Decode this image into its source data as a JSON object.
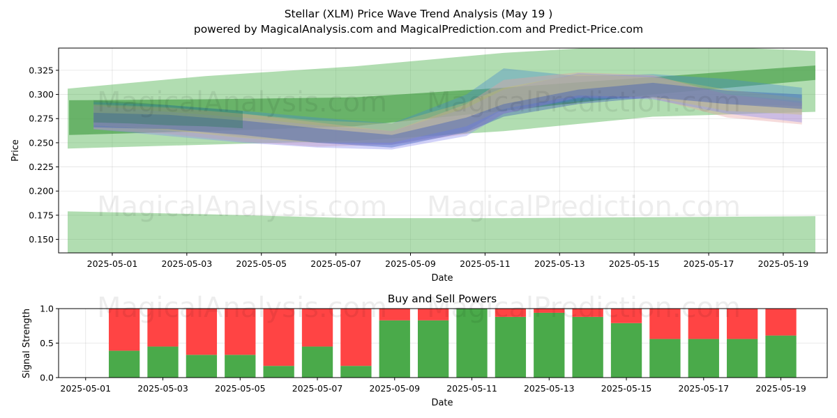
{
  "title_line1": "Stellar (XLM) Price Wave Trend Analysis (May 19 )",
  "title_line2": "powered by MagicalAnalysis.com and MagicalPrediction.com and Predict-Price.com",
  "watermarks": [
    "MagicalAnalysis.com",
    "MagicalPrediction.com"
  ],
  "colors": {
    "buy": "#4aaa4a",
    "sell": "#ff4444",
    "band_green": "#5cb85c",
    "band_blue": "#4466cc"
  },
  "chart_data": [
    {
      "type": "area",
      "title": "",
      "xlabel": "Date",
      "ylabel": "Price",
      "xlim": [
        "2025-04-29",
        "2025-05-20"
      ],
      "ylim": [
        0.136,
        0.348
      ],
      "grid": true,
      "xticks": [
        "2025-05-01",
        "2025-05-03",
        "2025-05-05",
        "2025-05-07",
        "2025-05-09",
        "2025-05-11",
        "2025-05-13",
        "2025-05-15",
        "2025-05-17",
        "2025-05-19"
      ],
      "yticks": [
        "0.150",
        "0.175",
        "0.200",
        "0.225",
        "0.250",
        "0.275",
        "0.300",
        "0.325"
      ],
      "series": [
        {
          "kind": "wide_green_upper",
          "x": [
            "2025-04-29",
            "2025-05-03",
            "2025-05-07",
            "2025-05-11",
            "2025-05-15",
            "2025-05-19"
          ],
          "upper": [
            0.306,
            0.319,
            0.329,
            0.343,
            0.352,
            0.345
          ],
          "lower": [
            0.244,
            0.248,
            0.252,
            0.262,
            0.277,
            0.282
          ]
        },
        {
          "kind": "wide_green_lower",
          "x": [
            "2025-04-29",
            "2025-05-03",
            "2025-05-07",
            "2025-05-11",
            "2025-05-15",
            "2025-05-19"
          ],
          "upper": [
            0.179,
            0.176,
            0.172,
            0.172,
            0.173,
            0.174
          ],
          "lower": [
            0.136,
            0.136,
            0.136,
            0.136,
            0.136,
            0.136
          ]
        },
        {
          "kind": "green_trend",
          "x": [
            "2025-04-29",
            "2025-05-03",
            "2025-05-07",
            "2025-05-11",
            "2025-05-15",
            "2025-05-19"
          ],
          "upper": [
            0.294,
            0.295,
            0.297,
            0.307,
            0.318,
            0.33
          ],
          "lower": [
            0.258,
            0.262,
            0.267,
            0.283,
            0.3,
            0.315
          ]
        },
        {
          "kind": "wave",
          "color": "#4488cc",
          "x": [
            "2025-04-30",
            "2025-05-02",
            "2025-05-04",
            "2025-05-06",
            "2025-05-08",
            "2025-05-10",
            "2025-05-11",
            "2025-05-13",
            "2025-05-15",
            "2025-05-17",
            "2025-05-19"
          ],
          "upper": [
            0.292,
            0.289,
            0.283,
            0.276,
            0.27,
            0.3,
            0.327,
            0.319,
            0.321,
            0.316,
            0.307
          ],
          "lower": [
            0.268,
            0.265,
            0.256,
            0.25,
            0.248,
            0.262,
            0.285,
            0.293,
            0.298,
            0.29,
            0.288
          ]
        },
        {
          "kind": "wave",
          "color": "#e8a0a0",
          "x": [
            "2025-04-30",
            "2025-05-02",
            "2025-05-04",
            "2025-05-06",
            "2025-05-08",
            "2025-05-10",
            "2025-05-11",
            "2025-05-13",
            "2025-05-15",
            "2025-05-17",
            "2025-05-19"
          ],
          "upper": [
            0.289,
            0.286,
            0.28,
            0.271,
            0.262,
            0.29,
            0.315,
            0.323,
            0.32,
            0.3,
            0.291
          ],
          "lower": [
            0.264,
            0.259,
            0.251,
            0.246,
            0.248,
            0.259,
            0.28,
            0.297,
            0.296,
            0.276,
            0.269
          ]
        },
        {
          "kind": "wave",
          "color": "#8888ee",
          "x": [
            "2025-04-30",
            "2025-05-02",
            "2025-05-04",
            "2025-05-06",
            "2025-05-08",
            "2025-05-10",
            "2025-05-11",
            "2025-05-13",
            "2025-05-15",
            "2025-05-17",
            "2025-05-19"
          ],
          "upper": [
            0.288,
            0.282,
            0.276,
            0.268,
            0.262,
            0.286,
            0.305,
            0.322,
            0.319,
            0.3,
            0.293
          ],
          "lower": [
            0.264,
            0.257,
            0.25,
            0.245,
            0.243,
            0.257,
            0.28,
            0.296,
            0.295,
            0.28,
            0.271
          ]
        },
        {
          "kind": "wave",
          "color": "#c8c070",
          "x": [
            "2025-04-30",
            "2025-05-02",
            "2025-05-04",
            "2025-05-06",
            "2025-05-08",
            "2025-05-10",
            "2025-05-11",
            "2025-05-13",
            "2025-05-15",
            "2025-05-17",
            "2025-05-19"
          ],
          "upper": [
            0.29,
            0.287,
            0.28,
            0.273,
            0.27,
            0.292,
            0.307,
            0.321,
            0.318,
            0.305,
            0.296
          ],
          "lower": [
            0.268,
            0.263,
            0.255,
            0.25,
            0.25,
            0.267,
            0.285,
            0.299,
            0.297,
            0.283,
            0.279
          ]
        },
        {
          "kind": "wave",
          "color": "#3355bb",
          "x": [
            "2025-04-30",
            "2025-05-02",
            "2025-05-04",
            "2025-05-06",
            "2025-05-08",
            "2025-05-10",
            "2025-05-11",
            "2025-05-13",
            "2025-05-15",
            "2025-05-17",
            "2025-05-19"
          ],
          "upper": [
            0.281,
            0.279,
            0.273,
            0.265,
            0.258,
            0.276,
            0.29,
            0.305,
            0.312,
            0.304,
            0.3
          ],
          "lower": [
            0.266,
            0.264,
            0.258,
            0.25,
            0.245,
            0.261,
            0.277,
            0.29,
            0.297,
            0.29,
            0.285
          ]
        },
        {
          "kind": "wave",
          "color": "#2a7a5a",
          "x": [
            "2025-04-30",
            "2025-05-01",
            "2025-05-02",
            "2025-05-03",
            "2025-05-04"
          ],
          "upper": [
            0.294,
            0.292,
            0.289,
            0.286,
            0.283
          ],
          "lower": [
            0.271,
            0.27,
            0.268,
            0.267,
            0.265
          ]
        }
      ]
    },
    {
      "type": "bar",
      "title": "Buy and Sell Powers",
      "xlabel": "Date",
      "ylabel": "Signal Strength",
      "ylim": [
        0,
        1
      ],
      "grid": true,
      "xticks": [
        "2025-05-01",
        "2025-05-03",
        "2025-05-05",
        "2025-05-07",
        "2025-05-09",
        "2025-05-11",
        "2025-05-13",
        "2025-05-15",
        "2025-05-17",
        "2025-05-19"
      ],
      "yticks": [
        "0.0",
        "0.5",
        "1.0"
      ],
      "categories": [
        "2025-05-02",
        "2025-05-03",
        "2025-05-04",
        "2025-05-05",
        "2025-05-06",
        "2025-05-07",
        "2025-05-08",
        "2025-05-09",
        "2025-05-10",
        "2025-05-11",
        "2025-05-12",
        "2025-05-13",
        "2025-05-14",
        "2025-05-15",
        "2025-05-16",
        "2025-05-17",
        "2025-05-18",
        "2025-05-19"
      ],
      "series": [
        {
          "name": "Buy",
          "color": "#4aaa4a",
          "values": [
            0.39,
            0.45,
            0.33,
            0.33,
            0.17,
            0.45,
            0.17,
            0.83,
            0.83,
            1.0,
            0.88,
            0.94,
            0.88,
            0.79,
            0.56,
            0.56,
            0.56,
            0.61
          ]
        },
        {
          "name": "Sell",
          "color": "#ff4444",
          "values": [
            0.61,
            0.55,
            0.67,
            0.67,
            0.83,
            0.55,
            0.83,
            0.17,
            0.17,
            0.0,
            0.12,
            0.06,
            0.12,
            0.21,
            0.44,
            0.44,
            0.44,
            0.39
          ]
        }
      ]
    }
  ]
}
